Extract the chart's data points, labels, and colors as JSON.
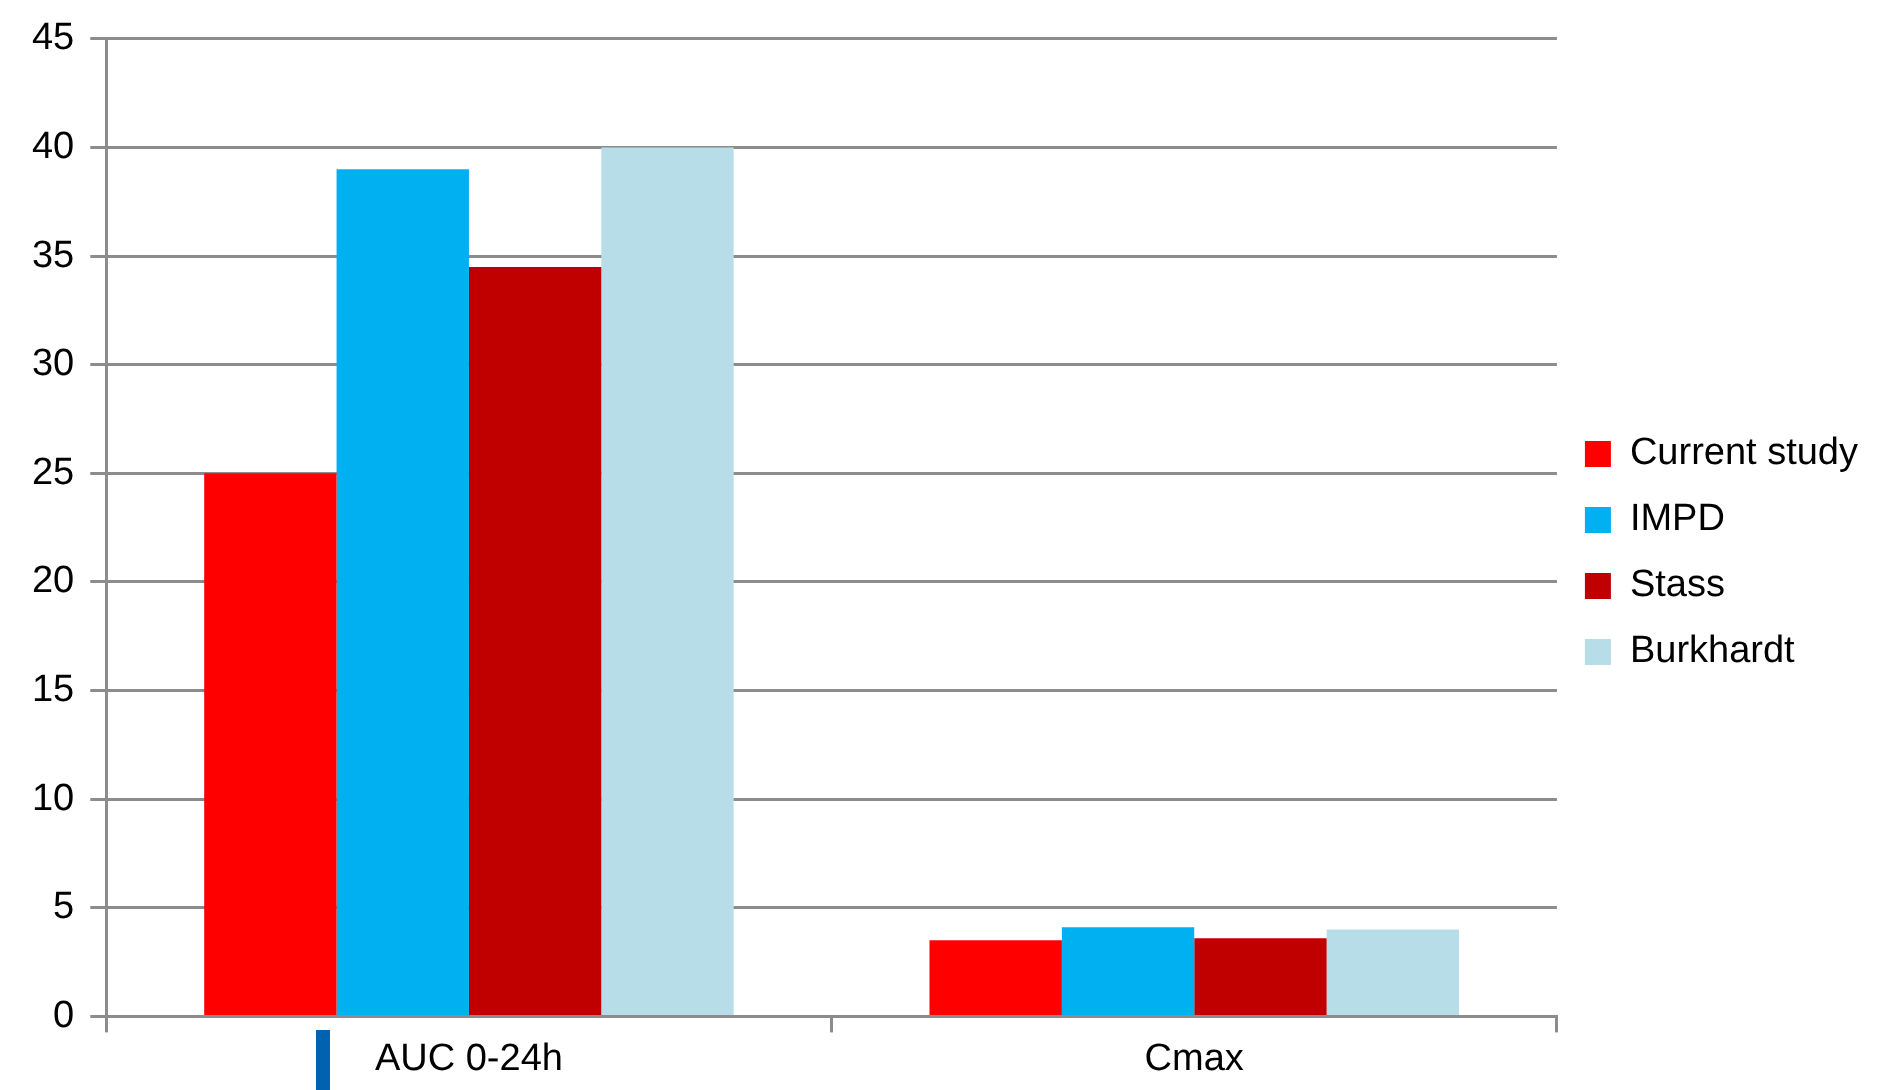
{
  "chart_data": {
    "type": "bar",
    "categories": [
      "AUC 0-24h",
      "Cmax"
    ],
    "series": [
      {
        "name": "Current study",
        "color": "#ff0000",
        "values": [
          25,
          3.5
        ]
      },
      {
        "name": "IMPD",
        "color": "#00b0f0",
        "values": [
          39,
          4.1
        ]
      },
      {
        "name": "Stass",
        "color": "#c00000",
        "values": [
          34.5,
          3.6
        ]
      },
      {
        "name": "Burkhardt",
        "color": "#b7dee8",
        "values": [
          40,
          4.0
        ]
      }
    ],
    "ylim": [
      0,
      45
    ],
    "yticks": [
      0,
      5,
      10,
      15,
      20,
      25,
      30,
      35,
      40,
      45
    ],
    "grid": "y",
    "legend": "right"
  }
}
